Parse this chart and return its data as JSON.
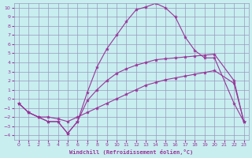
{
  "xlabel": "Windchill (Refroidissement éolien,°C)",
  "ylabel": "",
  "bg_color": "#c8eef0",
  "grid_color": "#9999bb",
  "line_color": "#993399",
  "xlim": [
    -0.5,
    23.5
  ],
  "ylim": [
    -4.5,
    10.5
  ],
  "xticks": [
    0,
    1,
    2,
    3,
    4,
    5,
    6,
    7,
    8,
    9,
    10,
    11,
    12,
    13,
    14,
    15,
    16,
    17,
    18,
    19,
    20,
    21,
    22,
    23
  ],
  "yticks": [
    -4,
    -3,
    -2,
    -1,
    0,
    1,
    2,
    3,
    4,
    5,
    6,
    7,
    8,
    9,
    10
  ],
  "line1_x": [
    0,
    1,
    2,
    3,
    4,
    5,
    6,
    7,
    8,
    9,
    10,
    11,
    12,
    13,
    14,
    15,
    16,
    17,
    18,
    19,
    20,
    22,
    23
  ],
  "line1_y": [
    -0.5,
    -1.5,
    -2,
    -2.5,
    -2.5,
    -3.8,
    -2.5,
    0.7,
    3.5,
    5.5,
    7.0,
    8.5,
    9.8,
    10.1,
    10.5,
    10.0,
    9.0,
    6.8,
    5.3,
    4.5,
    4.5,
    -0.5,
    -2.5
  ],
  "line2_x": [
    0,
    1,
    2,
    3,
    4,
    5,
    6,
    7,
    8,
    9,
    10,
    11,
    12,
    13,
    14,
    15,
    16,
    17,
    18,
    19,
    20,
    22,
    23
  ],
  "line2_y": [
    -0.5,
    -1.5,
    -2,
    -2.5,
    -2.5,
    -3.8,
    -2.5,
    -0.2,
    1.0,
    2.0,
    2.8,
    3.3,
    3.7,
    4.0,
    4.3,
    4.4,
    4.5,
    4.6,
    4.7,
    4.8,
    4.9,
    2.0,
    -2.5
  ],
  "line3_x": [
    0,
    1,
    2,
    3,
    4,
    5,
    6,
    7,
    8,
    9,
    10,
    11,
    12,
    13,
    14,
    15,
    16,
    17,
    18,
    19,
    20,
    22,
    23
  ],
  "line3_y": [
    -0.5,
    -1.5,
    -2,
    -2.0,
    -2.2,
    -2.5,
    -2.0,
    -1.5,
    -1.0,
    -0.5,
    0.0,
    0.5,
    1.0,
    1.5,
    1.8,
    2.1,
    2.3,
    2.5,
    2.7,
    2.9,
    3.1,
    1.7,
    -2.5
  ]
}
